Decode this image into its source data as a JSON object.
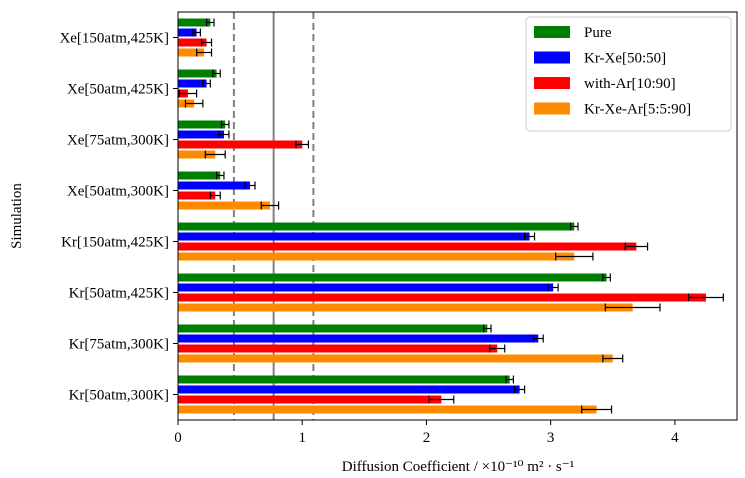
{
  "chart_data": {
    "type": "bar",
    "orientation": "horizontal",
    "title": "",
    "xlabel": "Diffusion Coefficient / ×10⁻¹⁰ m² · s⁻¹",
    "ylabel": "Simulation",
    "xlim": [
      0,
      4.5
    ],
    "x_ticks": [
      0,
      1,
      2,
      3,
      4
    ],
    "categories": [
      "Kr[50atm,300K]",
      "Kr[75atm,300K]",
      "Kr[50atm,425K]",
      "Kr[150atm,425K]",
      "Xe[50atm,300K]",
      "Xe[75atm,300K]",
      "Xe[50atm,425K]",
      "Xe[150atm,425K]"
    ],
    "series": [
      {
        "name": "Pure",
        "color": "#008000",
        "values": [
          2.67,
          2.49,
          3.45,
          3.19,
          0.34,
          0.38,
          0.31,
          0.26
        ],
        "errors": [
          0.03,
          0.03,
          0.03,
          0.03,
          0.03,
          0.03,
          0.03,
          0.03
        ]
      },
      {
        "name": "Kr-Xe[50:50]",
        "color": "#0000ff",
        "values": [
          2.75,
          2.9,
          3.02,
          2.83,
          0.58,
          0.37,
          0.23,
          0.15
        ],
        "errors": [
          0.04,
          0.04,
          0.04,
          0.04,
          0.04,
          0.04,
          0.03,
          0.03
        ]
      },
      {
        "name": "with-Ar[10:90]",
        "color": "#ff0000",
        "values": [
          2.12,
          2.57,
          4.25,
          3.69,
          0.3,
          1.0,
          0.08,
          0.23
        ],
        "errors": [
          0.1,
          0.06,
          0.14,
          0.09,
          0.04,
          0.05,
          0.07,
          0.04
        ]
      },
      {
        "name": "Kr-Xe-Ar[5:5:90]",
        "color": "#ff8c00",
        "values": [
          3.37,
          3.5,
          3.66,
          3.19,
          0.74,
          0.3,
          0.13,
          0.21
        ],
        "errors": [
          0.12,
          0.08,
          0.22,
          0.15,
          0.07,
          0.08,
          0.07,
          0.06
        ]
      }
    ],
    "reference_lines": [
      {
        "x": 0.45,
        "style": "dashed",
        "color": "#808080"
      },
      {
        "x": 0.77,
        "style": "solid",
        "color": "#808080"
      },
      {
        "x": 1.09,
        "style": "dashed",
        "color": "#808080"
      }
    ],
    "legend_position": "top-right",
    "grid": false
  }
}
